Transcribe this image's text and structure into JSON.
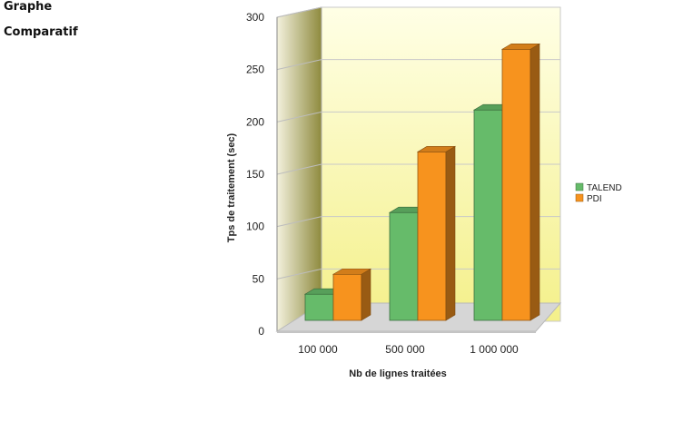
{
  "page": {
    "heading_line1": "Graphe",
    "heading_line2": "Comparatif"
  },
  "chart_data": {
    "type": "bar",
    "style": "3d-clustered-column",
    "categories": [
      "100 000",
      "500 000",
      "1 000 000"
    ],
    "series": [
      {
        "name": "TALEND",
        "values": [
          25,
          103,
          201
        ],
        "color": "#66bb6a"
      },
      {
        "name": "PDI",
        "values": [
          44,
          161,
          259
        ],
        "color": "#f7931e"
      }
    ],
    "xlabel": "Nb de lignes traitées",
    "ylabel": "Tps de traitement (sec)",
    "ylim": [
      0,
      300
    ],
    "yticks": [
      0,
      50,
      100,
      150,
      200,
      250,
      300
    ],
    "grid": true,
    "legend_position": "right",
    "colors": {
      "back_wall_top": "#ffffe6",
      "back_wall_bottom": "#f4f08a",
      "side_wall_light": "#f3f1dd",
      "side_wall_dark": "#8e8a3e",
      "floor": "#d6d6d6"
    }
  }
}
